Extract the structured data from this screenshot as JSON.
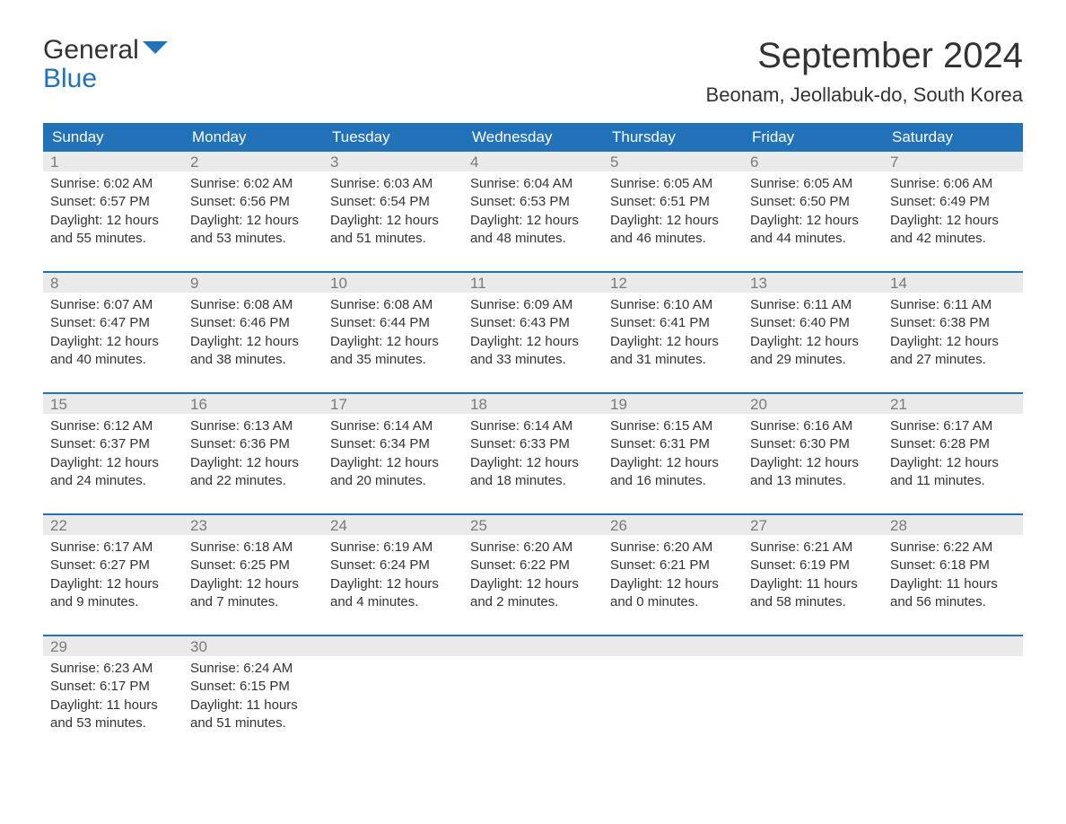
{
  "brand": {
    "line1": "General",
    "line2": "Blue",
    "flag_color": "#2172b8"
  },
  "title": "September 2024",
  "location": "Beonam, Jeollabuk-do, South Korea",
  "colors": {
    "header_bg": "#2172b8",
    "header_text": "#ffffff",
    "daynum_bg": "#eaeaea",
    "daynum_text": "#7a7a7a",
    "body_text": "#333333",
    "week_border": "#2172b8",
    "page_bg": "#ffffff"
  },
  "typography": {
    "title_fontsize": 40,
    "location_fontsize": 22,
    "dow_fontsize": 17,
    "body_fontsize": 15
  },
  "day_headers": [
    "Sunday",
    "Monday",
    "Tuesday",
    "Wednesday",
    "Thursday",
    "Friday",
    "Saturday"
  ],
  "weeks": [
    [
      {
        "num": "1",
        "sunrise": "Sunrise: 6:02 AM",
        "sunset": "Sunset: 6:57 PM",
        "daylight": "Daylight: 12 hours and 55 minutes."
      },
      {
        "num": "2",
        "sunrise": "Sunrise: 6:02 AM",
        "sunset": "Sunset: 6:56 PM",
        "daylight": "Daylight: 12 hours and 53 minutes."
      },
      {
        "num": "3",
        "sunrise": "Sunrise: 6:03 AM",
        "sunset": "Sunset: 6:54 PM",
        "daylight": "Daylight: 12 hours and 51 minutes."
      },
      {
        "num": "4",
        "sunrise": "Sunrise: 6:04 AM",
        "sunset": "Sunset: 6:53 PM",
        "daylight": "Daylight: 12 hours and 48 minutes."
      },
      {
        "num": "5",
        "sunrise": "Sunrise: 6:05 AM",
        "sunset": "Sunset: 6:51 PM",
        "daylight": "Daylight: 12 hours and 46 minutes."
      },
      {
        "num": "6",
        "sunrise": "Sunrise: 6:05 AM",
        "sunset": "Sunset: 6:50 PM",
        "daylight": "Daylight: 12 hours and 44 minutes."
      },
      {
        "num": "7",
        "sunrise": "Sunrise: 6:06 AM",
        "sunset": "Sunset: 6:49 PM",
        "daylight": "Daylight: 12 hours and 42 minutes."
      }
    ],
    [
      {
        "num": "8",
        "sunrise": "Sunrise: 6:07 AM",
        "sunset": "Sunset: 6:47 PM",
        "daylight": "Daylight: 12 hours and 40 minutes."
      },
      {
        "num": "9",
        "sunrise": "Sunrise: 6:08 AM",
        "sunset": "Sunset: 6:46 PM",
        "daylight": "Daylight: 12 hours and 38 minutes."
      },
      {
        "num": "10",
        "sunrise": "Sunrise: 6:08 AM",
        "sunset": "Sunset: 6:44 PM",
        "daylight": "Daylight: 12 hours and 35 minutes."
      },
      {
        "num": "11",
        "sunrise": "Sunrise: 6:09 AM",
        "sunset": "Sunset: 6:43 PM",
        "daylight": "Daylight: 12 hours and 33 minutes."
      },
      {
        "num": "12",
        "sunrise": "Sunrise: 6:10 AM",
        "sunset": "Sunset: 6:41 PM",
        "daylight": "Daylight: 12 hours and 31 minutes."
      },
      {
        "num": "13",
        "sunrise": "Sunrise: 6:11 AM",
        "sunset": "Sunset: 6:40 PM",
        "daylight": "Daylight: 12 hours and 29 minutes."
      },
      {
        "num": "14",
        "sunrise": "Sunrise: 6:11 AM",
        "sunset": "Sunset: 6:38 PM",
        "daylight": "Daylight: 12 hours and 27 minutes."
      }
    ],
    [
      {
        "num": "15",
        "sunrise": "Sunrise: 6:12 AM",
        "sunset": "Sunset: 6:37 PM",
        "daylight": "Daylight: 12 hours and 24 minutes."
      },
      {
        "num": "16",
        "sunrise": "Sunrise: 6:13 AM",
        "sunset": "Sunset: 6:36 PM",
        "daylight": "Daylight: 12 hours and 22 minutes."
      },
      {
        "num": "17",
        "sunrise": "Sunrise: 6:14 AM",
        "sunset": "Sunset: 6:34 PM",
        "daylight": "Daylight: 12 hours and 20 minutes."
      },
      {
        "num": "18",
        "sunrise": "Sunrise: 6:14 AM",
        "sunset": "Sunset: 6:33 PM",
        "daylight": "Daylight: 12 hours and 18 minutes."
      },
      {
        "num": "19",
        "sunrise": "Sunrise: 6:15 AM",
        "sunset": "Sunset: 6:31 PM",
        "daylight": "Daylight: 12 hours and 16 minutes."
      },
      {
        "num": "20",
        "sunrise": "Sunrise: 6:16 AM",
        "sunset": "Sunset: 6:30 PM",
        "daylight": "Daylight: 12 hours and 13 minutes."
      },
      {
        "num": "21",
        "sunrise": "Sunrise: 6:17 AM",
        "sunset": "Sunset: 6:28 PM",
        "daylight": "Daylight: 12 hours and 11 minutes."
      }
    ],
    [
      {
        "num": "22",
        "sunrise": "Sunrise: 6:17 AM",
        "sunset": "Sunset: 6:27 PM",
        "daylight": "Daylight: 12 hours and 9 minutes."
      },
      {
        "num": "23",
        "sunrise": "Sunrise: 6:18 AM",
        "sunset": "Sunset: 6:25 PM",
        "daylight": "Daylight: 12 hours and 7 minutes."
      },
      {
        "num": "24",
        "sunrise": "Sunrise: 6:19 AM",
        "sunset": "Sunset: 6:24 PM",
        "daylight": "Daylight: 12 hours and 4 minutes."
      },
      {
        "num": "25",
        "sunrise": "Sunrise: 6:20 AM",
        "sunset": "Sunset: 6:22 PM",
        "daylight": "Daylight: 12 hours and 2 minutes."
      },
      {
        "num": "26",
        "sunrise": "Sunrise: 6:20 AM",
        "sunset": "Sunset: 6:21 PM",
        "daylight": "Daylight: 12 hours and 0 minutes."
      },
      {
        "num": "27",
        "sunrise": "Sunrise: 6:21 AM",
        "sunset": "Sunset: 6:19 PM",
        "daylight": "Daylight: 11 hours and 58 minutes."
      },
      {
        "num": "28",
        "sunrise": "Sunrise: 6:22 AM",
        "sunset": "Sunset: 6:18 PM",
        "daylight": "Daylight: 11 hours and 56 minutes."
      }
    ],
    [
      {
        "num": "29",
        "sunrise": "Sunrise: 6:23 AM",
        "sunset": "Sunset: 6:17 PM",
        "daylight": "Daylight: 11 hours and 53 minutes."
      },
      {
        "num": "30",
        "sunrise": "Sunrise: 6:24 AM",
        "sunset": "Sunset: 6:15 PM",
        "daylight": "Daylight: 11 hours and 51 minutes."
      },
      {
        "num": "",
        "sunrise": "",
        "sunset": "",
        "daylight": ""
      },
      {
        "num": "",
        "sunrise": "",
        "sunset": "",
        "daylight": ""
      },
      {
        "num": "",
        "sunrise": "",
        "sunset": "",
        "daylight": ""
      },
      {
        "num": "",
        "sunrise": "",
        "sunset": "",
        "daylight": ""
      },
      {
        "num": "",
        "sunrise": "",
        "sunset": "",
        "daylight": ""
      }
    ]
  ]
}
